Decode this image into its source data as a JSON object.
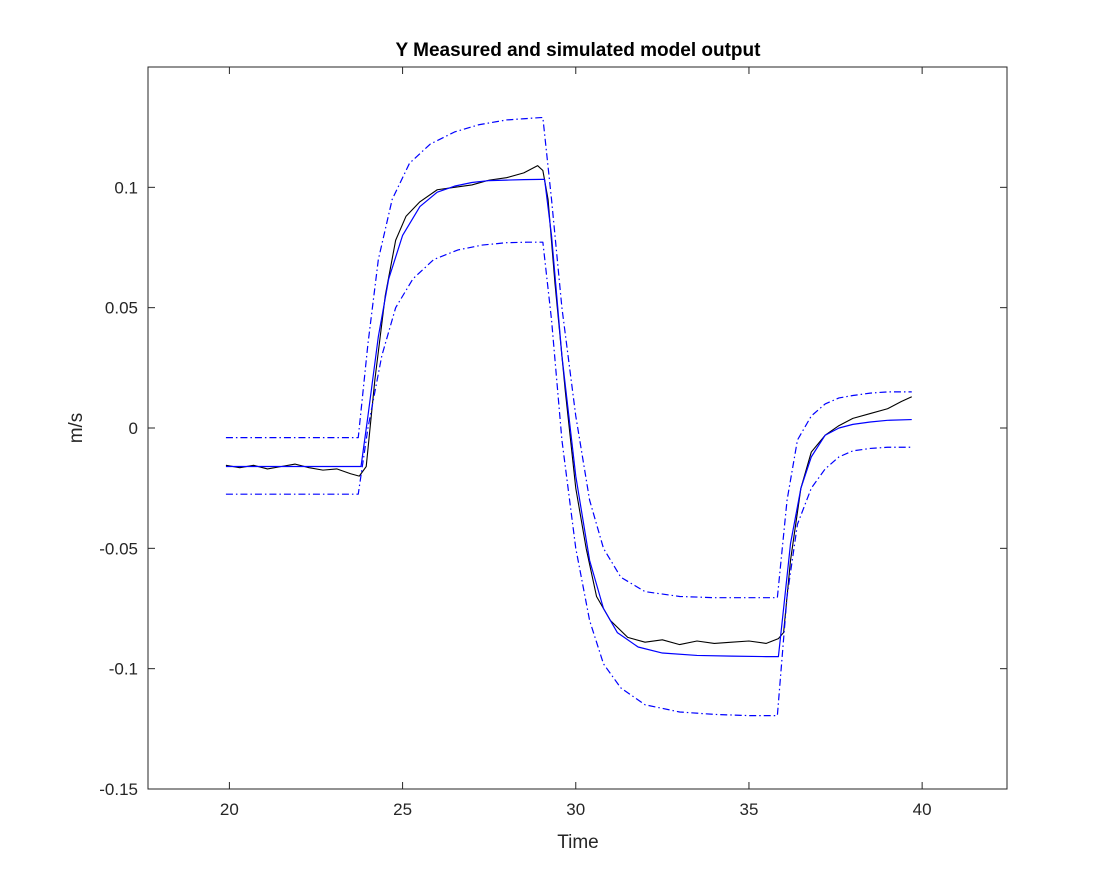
{
  "chart_data": {
    "type": "line",
    "title": "Y Measured and simulated model output",
    "xlabel": "Time",
    "ylabel": "m/s",
    "xlim": [
      17.65,
      42.45
    ],
    "ylim": [
      -0.15,
      0.15
    ],
    "xticks": [
      {
        "value": 20,
        "label": "20"
      },
      {
        "value": 25,
        "label": "25"
      },
      {
        "value": 30,
        "label": "30"
      },
      {
        "value": 35,
        "label": "35"
      },
      {
        "value": 40,
        "label": "40"
      }
    ],
    "yticks": [
      {
        "value": -0.15,
        "label": "-0.15"
      },
      {
        "value": -0.1,
        "label": "-0.1"
      },
      {
        "value": -0.05,
        "label": "-0.05"
      },
      {
        "value": 0,
        "label": "0"
      },
      {
        "value": 0.05,
        "label": "0.05"
      },
      {
        "value": 0.1,
        "label": "0.1"
      }
    ],
    "grid": false,
    "legend": "none",
    "colors": {
      "measured": "#000000",
      "simulated": "#0000ff",
      "bounds": "#0000ff",
      "axes": "#262626"
    },
    "series": [
      {
        "style": "measured",
        "color": "#000000",
        "line": "solid",
        "x": [
          19.9,
          20.3,
          20.7,
          21.1,
          21.5,
          21.9,
          22.3,
          22.7,
          23.1,
          23.5,
          23.75,
          23.95,
          24.2,
          24.5,
          24.8,
          25.1,
          25.5,
          26.0,
          26.5,
          27.0,
          27.5,
          28.0,
          28.5,
          28.9,
          29.05,
          29.2,
          29.4,
          29.7,
          30.0,
          30.3,
          30.6,
          31.0,
          31.5,
          32.0,
          32.5,
          33.0,
          33.5,
          34.0,
          34.5,
          35.0,
          35.5,
          35.85,
          36.0,
          36.2,
          36.5,
          36.8,
          37.2,
          37.6,
          38.0,
          38.5,
          39.0,
          39.4,
          39.7
        ],
        "y": [
          -0.0155,
          -0.0165,
          -0.0155,
          -0.017,
          -0.016,
          -0.015,
          -0.0165,
          -0.0175,
          -0.017,
          -0.019,
          -0.02,
          -0.016,
          0.02,
          0.055,
          0.078,
          0.088,
          0.094,
          0.099,
          0.1,
          0.101,
          0.103,
          0.104,
          0.106,
          0.109,
          0.107,
          0.095,
          0.06,
          0.015,
          -0.025,
          -0.05,
          -0.07,
          -0.08,
          -0.087,
          -0.089,
          -0.088,
          -0.09,
          -0.0885,
          -0.0895,
          -0.089,
          -0.0885,
          -0.0895,
          -0.0875,
          -0.085,
          -0.055,
          -0.025,
          -0.01,
          -0.003,
          0.001,
          0.004,
          0.006,
          0.008,
          0.011,
          0.013
        ]
      },
      {
        "style": "simulated",
        "color": "#0000ff",
        "line": "solid",
        "x": [
          19.9,
          20.5,
          21.5,
          22.5,
          23.5,
          23.8,
          24.0,
          24.3,
          24.6,
          25.0,
          25.5,
          26.0,
          26.5,
          27.0,
          27.5,
          28.0,
          28.5,
          29.0,
          29.1,
          29.3,
          29.6,
          30.0,
          30.4,
          30.8,
          31.2,
          31.8,
          32.5,
          33.5,
          34.5,
          35.5,
          35.85,
          36.0,
          36.2,
          36.5,
          36.8,
          37.2,
          37.6,
          38.0,
          38.5,
          39.0,
          39.7
        ],
        "y": [
          -0.016,
          -0.016,
          -0.016,
          -0.016,
          -0.016,
          -0.016,
          0.005,
          0.038,
          0.062,
          0.08,
          0.092,
          0.098,
          0.1005,
          0.102,
          0.1028,
          0.103,
          0.1032,
          0.1033,
          0.1033,
          0.08,
          0.03,
          -0.02,
          -0.055,
          -0.075,
          -0.085,
          -0.091,
          -0.0935,
          -0.0945,
          -0.0948,
          -0.095,
          -0.095,
          -0.075,
          -0.048,
          -0.025,
          -0.012,
          -0.003,
          0.0,
          0.0015,
          0.0025,
          0.0032,
          0.0035
        ]
      },
      {
        "style": "bound-upper",
        "color": "#0000ff",
        "line": "dashdot",
        "x": [
          19.9,
          21.0,
          22.0,
          23.0,
          23.7,
          23.72,
          24.0,
          24.3,
          24.7,
          25.2,
          25.8,
          26.5,
          27.2,
          28.0,
          28.5,
          29.0,
          29.05,
          29.3,
          29.6,
          30.0,
          30.4,
          30.8,
          31.3,
          32.0,
          33.0,
          34.0,
          35.0,
          35.8,
          35.82,
          36.1,
          36.4,
          36.8,
          37.2,
          37.6,
          38.0,
          38.5,
          39.0,
          39.7
        ],
        "y": [
          -0.004,
          -0.004,
          -0.004,
          -0.004,
          -0.004,
          -0.004,
          0.035,
          0.07,
          0.095,
          0.11,
          0.118,
          0.123,
          0.126,
          0.128,
          0.1285,
          0.129,
          0.129,
          0.095,
          0.05,
          0.005,
          -0.03,
          -0.05,
          -0.062,
          -0.068,
          -0.07,
          -0.0705,
          -0.0705,
          -0.0705,
          -0.0705,
          -0.03,
          -0.005,
          0.005,
          0.01,
          0.0125,
          0.0135,
          0.0145,
          0.015,
          0.015
        ]
      },
      {
        "style": "bound-lower",
        "color": "#0000ff",
        "line": "dashdot",
        "x": [
          19.9,
          21.0,
          22.0,
          23.0,
          23.7,
          23.72,
          24.0,
          24.4,
          24.8,
          25.3,
          25.9,
          26.6,
          27.3,
          28.0,
          28.6,
          29.0,
          29.05,
          29.3,
          29.6,
          30.0,
          30.4,
          30.8,
          31.3,
          32.0,
          33.0,
          34.0,
          35.0,
          35.8,
          35.82,
          36.1,
          36.4,
          36.8,
          37.2,
          37.6,
          38.0,
          38.5,
          39.0,
          39.7
        ],
        "y": [
          -0.0275,
          -0.0275,
          -0.0275,
          -0.0275,
          -0.0275,
          -0.0275,
          0.0,
          0.03,
          0.05,
          0.062,
          0.07,
          0.074,
          0.076,
          0.077,
          0.0772,
          0.0772,
          0.0772,
          0.045,
          -0.005,
          -0.05,
          -0.08,
          -0.098,
          -0.108,
          -0.115,
          -0.118,
          -0.119,
          -0.1195,
          -0.1195,
          -0.1195,
          -0.07,
          -0.04,
          -0.025,
          -0.017,
          -0.012,
          -0.0095,
          -0.0085,
          -0.008,
          -0.008
        ]
      }
    ]
  }
}
